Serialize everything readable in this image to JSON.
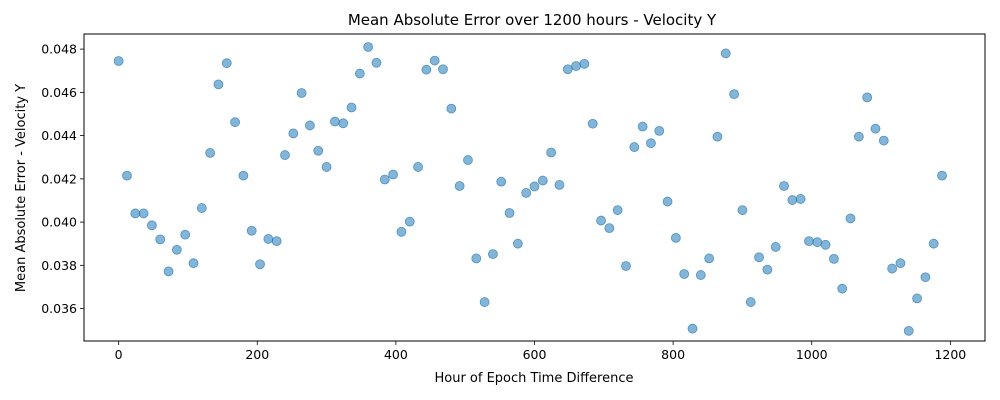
{
  "chart_data": {
    "type": "scatter",
    "title": "Mean Absolute Error over 1200 hours - Velocity Y",
    "xlabel": "Hour of Epoch Time Difference",
    "ylabel": "Mean Absolute Error - Velocity Y",
    "xlim": [
      -50,
      1250
    ],
    "ylim": [
      0.0345,
      0.0487
    ],
    "xticks": [
      0,
      200,
      400,
      600,
      800,
      1000,
      1200
    ],
    "yticks": [
      0.036,
      0.038,
      0.04,
      0.042,
      0.044,
      0.046,
      0.048
    ],
    "ytick_labels": [
      "0.036",
      "0.038",
      "0.040",
      "0.042",
      "0.044",
      "0.046",
      "0.048"
    ],
    "grid": false,
    "color": "#1f77b4",
    "x": [
      0,
      12,
      24,
      36,
      48,
      60,
      72,
      84,
      96,
      108,
      120,
      132,
      144,
      156,
      168,
      180,
      192,
      204,
      216,
      228,
      240,
      252,
      264,
      276,
      288,
      300,
      312,
      324,
      336,
      348,
      360,
      372,
      384,
      396,
      408,
      420,
      432,
      444,
      456,
      468,
      480,
      492,
      504,
      516,
      528,
      540,
      552,
      564,
      576,
      588,
      600,
      612,
      624,
      636,
      648,
      660,
      672,
      684,
      696,
      708,
      720,
      732,
      744,
      756,
      768,
      780,
      792,
      804,
      816,
      828,
      840,
      852,
      864,
      876,
      888,
      900,
      912,
      924,
      936,
      948,
      960,
      972,
      984,
      996,
      1008,
      1020,
      1032,
      1044,
      1056,
      1068,
      1080,
      1092,
      1104,
      1116,
      1128,
      1140,
      1152,
      1164,
      1176,
      1188
    ],
    "y": [
      0.04745,
      0.04215,
      0.0404,
      0.0404,
      0.03985,
      0.0392,
      0.03772,
      0.03872,
      0.03942,
      0.0381,
      0.04065,
      0.0432,
      0.04637,
      0.04735,
      0.04462,
      0.04215,
      0.0396,
      0.03805,
      0.03922,
      0.03912,
      0.0431,
      0.0441,
      0.04597,
      0.04447,
      0.0433,
      0.04255,
      0.04465,
      0.04457,
      0.0453,
      0.04687,
      0.0481,
      0.04737,
      0.04197,
      0.0422,
      0.03955,
      0.04002,
      0.04255,
      0.04705,
      0.04747,
      0.04707,
      0.04525,
      0.04167,
      0.04287,
      0.03832,
      0.0363,
      0.03852,
      0.04187,
      0.04042,
      0.039,
      0.04135,
      0.04165,
      0.04192,
      0.04322,
      0.04172,
      0.04707,
      0.04722,
      0.04732,
      0.04455,
      0.04007,
      0.03972,
      0.04055,
      0.03797,
      0.04347,
      0.04442,
      0.04365,
      0.04422,
      0.04095,
      0.03927,
      0.0376,
      0.03507,
      0.03755,
      0.03832,
      0.04395,
      0.0478,
      0.04592,
      0.04055,
      0.0363,
      0.03837,
      0.0378,
      0.03885,
      0.04167,
      0.04102,
      0.04107,
      0.03912,
      0.03907,
      0.03895,
      0.0383,
      0.03692,
      0.04017,
      0.04395,
      0.04577,
      0.04432,
      0.04377,
      0.03785,
      0.0381,
      0.03497,
      0.03647,
      0.03745,
      0.039,
      0.04215
    ]
  }
}
